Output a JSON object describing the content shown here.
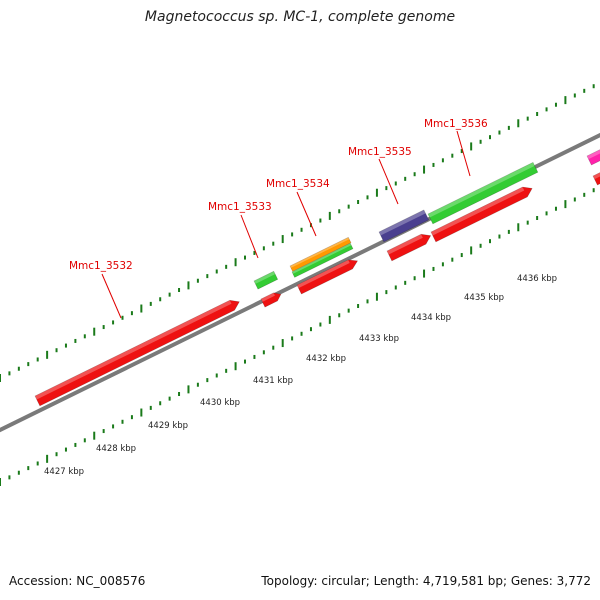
{
  "title": "Magnetococcus sp. MC-1, complete genome",
  "footer": {
    "accession": "Accession: NC_008576",
    "summary": "Topology: circular; Length: 4,719,581 bp; Genes: 3,772"
  },
  "colors": {
    "backbone": "#7a7a7a",
    "tick": "#1a7a1a",
    "label_red": "#e00000",
    "gene_red": "#ee1111",
    "gene_green": "#33cc33",
    "gene_orange": "#ff9900",
    "gene_purple": "#4a3f8f",
    "gene_magenta": "#ff22aa"
  },
  "scale_labels": [
    "4427 kbp",
    "4428 kbp",
    "4429 kbp",
    "4430 kbp",
    "4431 kbp",
    "4432 kbp",
    "4433 kbp",
    "4434 kbp",
    "4435 kbp",
    "4436 kbp"
  ],
  "gene_labels": [
    "Mmc1_3532",
    "Mmc1_3533",
    "Mmc1_3534",
    "Mmc1_3535",
    "Mmc1_3536"
  ]
}
